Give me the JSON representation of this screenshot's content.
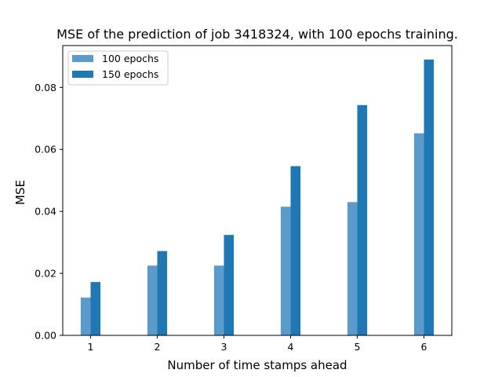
{
  "chart_data": {
    "type": "bar",
    "title": "MSE of the prediction of job 3418324, with 100 epochs training.",
    "xlabel": "Number of time stamps ahead",
    "ylabel": "MSE",
    "categories": [
      "1",
      "2",
      "3",
      "4",
      "5",
      "6"
    ],
    "series": [
      {
        "name": "100 epochs",
        "color": "#5b9bcb",
        "values": [
          0.0122,
          0.0225,
          0.0225,
          0.0415,
          0.043,
          0.0652
        ]
      },
      {
        "name": "150 epochs",
        "color": "#1f77b4",
        "values": [
          0.0172,
          0.0272,
          0.0324,
          0.0546,
          0.0743,
          0.089
        ]
      }
    ],
    "ylim": [
      0,
      0.0935
    ],
    "yticks": [
      "0.00",
      "0.02",
      "0.04",
      "0.06",
      "0.08"
    ],
    "grid": false,
    "legend_position": "top-left"
  }
}
